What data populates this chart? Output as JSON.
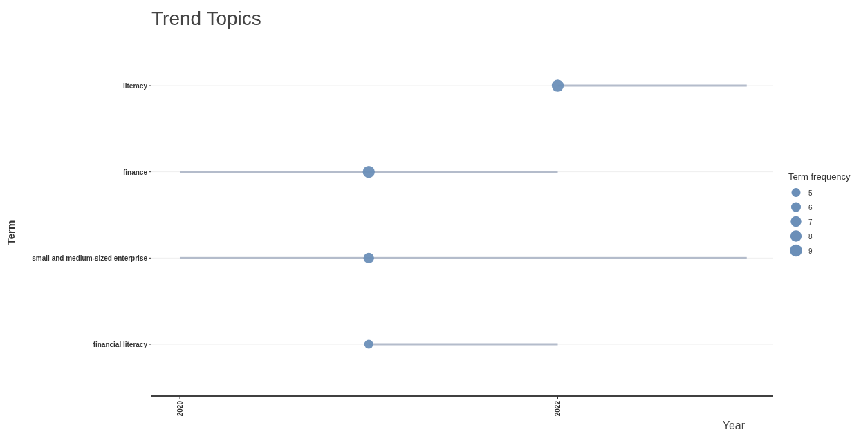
{
  "chart_data": {
    "type": "bubble",
    "title": "Trend Topics",
    "xlabel": "Year",
    "ylabel": "Term",
    "legend_title": "Term frequency",
    "orientation": "horizontal",
    "categories": [
      "literacy",
      "finance",
      "small and medium-sized enterprise",
      "financial literacy"
    ],
    "series": [
      {
        "type": "bar",
        "color": "#b4bccb",
        "base": [
          2022,
          2020,
          2020,
          2021
        ],
        "values": [
          1,
          2,
          3,
          1
        ]
      },
      {
        "color": "#6b8fb8",
        "values": [
          2022,
          2021,
          2021,
          2021
        ],
        "sizes": [
          9,
          9,
          7,
          5
        ]
      }
    ],
    "size_legend": [
      5,
      6,
      7,
      8,
      9
    ],
    "xlim": [
      2019.85,
      2023.14
    ],
    "xticks": [
      2020,
      2022
    ],
    "grid": "y"
  }
}
